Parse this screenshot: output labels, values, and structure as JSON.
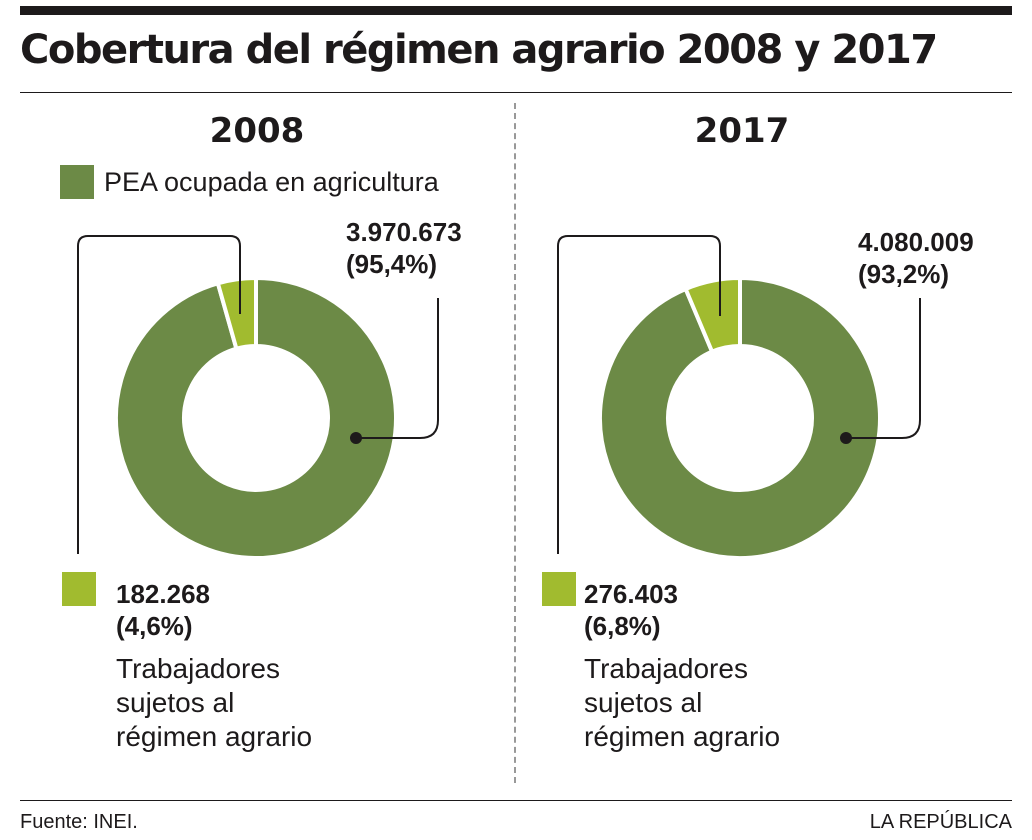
{
  "title": "Cobertura del régimen agrario 2008 y 2017",
  "legend": {
    "label": "PEA ocupada en agricultura"
  },
  "colors": {
    "pea": "#6c8a46",
    "regimen": "#a1bb2f",
    "ink": "#1d1a1b"
  },
  "chart_data": [
    {
      "type": "pie",
      "year": "2008",
      "slices": [
        {
          "name": "PEA ocupada en agricultura",
          "value": 3970673,
          "label": "3.970.673",
          "percent_label": "(95,4%)",
          "percent": 95.4
        },
        {
          "name": "Trabajadores sujetos al régimen agrario",
          "value": 182268,
          "label": "182.268",
          "percent_label": "(4,6%)",
          "percent": 4.6
        }
      ],
      "desc": [
        "Trabajadores",
        "sujetos al",
        "régimen agrario"
      ]
    },
    {
      "type": "pie",
      "year": "2017",
      "slices": [
        {
          "name": "PEA ocupada en agricultura",
          "value": 4080009,
          "label": "4.080.009",
          "percent_label": "(93,2%)",
          "percent": 93.2
        },
        {
          "name": "Trabajadores sujetos al régimen agrario",
          "value": 276403,
          "label": "276.403",
          "percent_label": "(6,8%)",
          "percent": 6.8
        }
      ],
      "desc": [
        "Trabajadores",
        "sujetos al",
        "régimen agrario"
      ]
    }
  ],
  "footer": {
    "source": "Fuente: INEI.",
    "brand": "LA REPÚBLICA"
  }
}
